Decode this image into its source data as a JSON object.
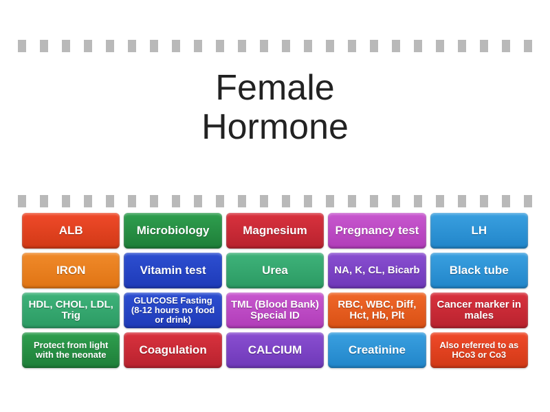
{
  "title_line1": "Female",
  "title_line2": "Hormone",
  "dash_color": "#b9b9b9",
  "dash_count": 24,
  "grid": {
    "cols": 5,
    "rows": 4,
    "tiles": [
      {
        "label": "ALB",
        "bg": "linear-gradient(#f04a2a,#d13916)",
        "size": "normal"
      },
      {
        "label": "Microbiology",
        "bg": "linear-gradient(#2f9f4f,#1e7e38)",
        "size": "normal"
      },
      {
        "label": "Magnesium",
        "bg": "linear-gradient(#d9323e,#b8222e)",
        "size": "normal"
      },
      {
        "label": "Pregnancy test",
        "bg": "linear-gradient(#c858cf,#b03cb8)",
        "size": "normal"
      },
      {
        "label": "LH",
        "bg": "linear-gradient(#3aa0e0,#2185c9)",
        "size": "normal"
      },
      {
        "label": "IRON",
        "bg": "linear-gradient(#f08a2a,#e07414)",
        "size": "normal"
      },
      {
        "label": "Vitamin test",
        "bg": "linear-gradient(#2d4fd1,#1e3ab8)",
        "size": "normal"
      },
      {
        "label": "Urea",
        "bg": "linear-gradient(#3fb37a,#2b9a63)",
        "size": "normal"
      },
      {
        "label": "NA, K, CL, Bicarb",
        "bg": "linear-gradient(#8a4fd1,#6e38b8)",
        "size": "med"
      },
      {
        "label": "Black tube",
        "bg": "linear-gradient(#3aa0e0,#2185c9)",
        "size": "normal"
      },
      {
        "label": "HDL, CHOL, LDL, Trig",
        "bg": "linear-gradient(#3fb37a,#2b9a63)",
        "size": "med"
      },
      {
        "label": "GLUCOSE Fasting (8-12 hours no food or drink)",
        "bg": "linear-gradient(#2d4fd1,#1e3ab8)",
        "size": "small"
      },
      {
        "label": "TML (Blood Bank) Special ID",
        "bg": "linear-gradient(#c858cf,#b03cb8)",
        "size": "med"
      },
      {
        "label": "RBC, WBC, Diff, Hct, Hb, Plt",
        "bg": "linear-gradient(#f0682a,#d95014)",
        "size": "med"
      },
      {
        "label": "Cancer marker in males",
        "bg": "linear-gradient(#d9323e,#b8222e)",
        "size": "med"
      },
      {
        "label": "Protect from light with the neonate",
        "bg": "linear-gradient(#2f9f4f,#1e7e38)",
        "size": "small"
      },
      {
        "label": "Coagulation",
        "bg": "linear-gradient(#d9323e,#b8222e)",
        "size": "normal"
      },
      {
        "label": "CALCIUM",
        "bg": "linear-gradient(#8a4fd1,#6e38b8)",
        "size": "normal"
      },
      {
        "label": "Creatinine",
        "bg": "linear-gradient(#3aa0e0,#2185c9)",
        "size": "normal"
      },
      {
        "label": "Also referred to as HCo3 or Co3",
        "bg": "linear-gradient(#f04a2a,#d13916)",
        "size": "small"
      }
    ]
  }
}
